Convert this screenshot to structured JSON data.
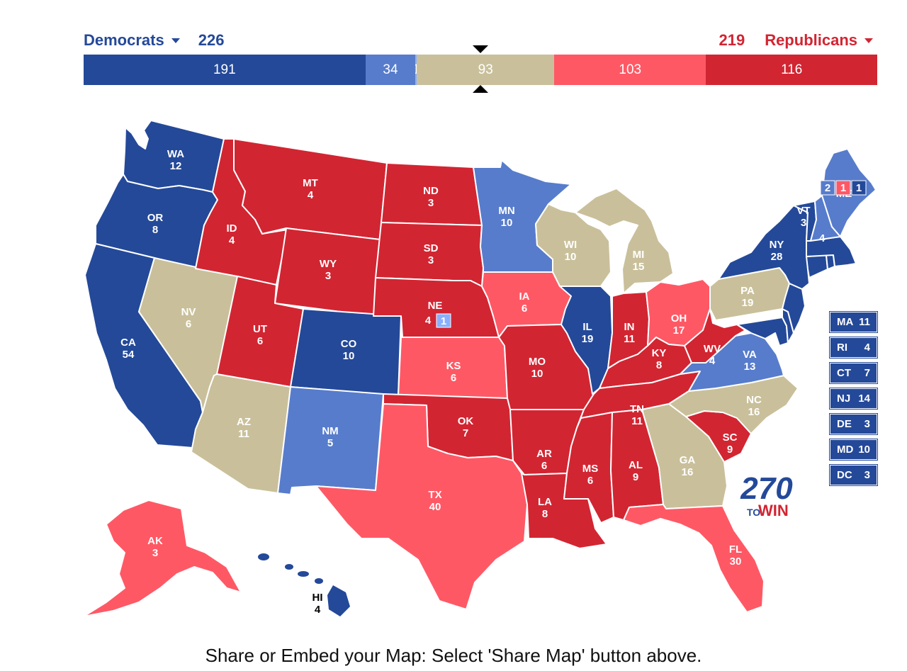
{
  "header": {
    "dem_label": "Democrats",
    "dem_total": "226",
    "rep_label": "Republicans",
    "rep_total": "219"
  },
  "bar_segments": [
    {
      "label": "191",
      "value": 191,
      "color": "#244999"
    },
    {
      "label": "34",
      "value": 34,
      "color": "#577CCC"
    },
    {
      "label": "1",
      "value": 1,
      "color": "#8AAFFF"
    },
    {
      "label": "93",
      "value": 93,
      "color": "#C9C09B"
    },
    {
      "label": "103",
      "value": 103,
      "color": "#FF5865"
    },
    {
      "label": "116",
      "value": 116,
      "color": "#D22532"
    }
  ],
  "states": {
    "WA": {
      "name": "WA",
      "ev": "12"
    },
    "OR": {
      "name": "OR",
      "ev": "8"
    },
    "CA": {
      "name": "CA",
      "ev": "54"
    },
    "NV": {
      "name": "NV",
      "ev": "6"
    },
    "ID": {
      "name": "ID",
      "ev": "4"
    },
    "MT": {
      "name": "MT",
      "ev": "4"
    },
    "WY": {
      "name": "WY",
      "ev": "3"
    },
    "UT": {
      "name": "UT",
      "ev": "6"
    },
    "AZ": {
      "name": "AZ",
      "ev": "11"
    },
    "CO": {
      "name": "CO",
      "ev": "10"
    },
    "NM": {
      "name": "NM",
      "ev": "5"
    },
    "ND": {
      "name": "ND",
      "ev": "3"
    },
    "SD": {
      "name": "SD",
      "ev": "3"
    },
    "NE": {
      "name": "NE",
      "ev": "4",
      "district": "1"
    },
    "KS": {
      "name": "KS",
      "ev": "6"
    },
    "OK": {
      "name": "OK",
      "ev": "7"
    },
    "TX": {
      "name": "TX",
      "ev": "40"
    },
    "MN": {
      "name": "MN",
      "ev": "10"
    },
    "IA": {
      "name": "IA",
      "ev": "6"
    },
    "MO": {
      "name": "MO",
      "ev": "10"
    },
    "AR": {
      "name": "AR",
      "ev": "6"
    },
    "LA": {
      "name": "LA",
      "ev": "8"
    },
    "WI": {
      "name": "WI",
      "ev": "10"
    },
    "IL": {
      "name": "IL",
      "ev": "19"
    },
    "MI": {
      "name": "MI",
      "ev": "15"
    },
    "IN": {
      "name": "IN",
      "ev": "11"
    },
    "OH": {
      "name": "OH",
      "ev": "17"
    },
    "KY": {
      "name": "KY",
      "ev": "8"
    },
    "TN": {
      "name": "TN",
      "ev": "11"
    },
    "MS": {
      "name": "MS",
      "ev": "6"
    },
    "AL": {
      "name": "AL",
      "ev": "9"
    },
    "GA": {
      "name": "GA",
      "ev": "16"
    },
    "FL": {
      "name": "FL",
      "ev": "30"
    },
    "SC": {
      "name": "SC",
      "ev": "9"
    },
    "NC": {
      "name": "NC",
      "ev": "16"
    },
    "VA": {
      "name": "VA",
      "ev": "13"
    },
    "WV": {
      "name": "WV",
      "ev": "4"
    },
    "PA": {
      "name": "PA",
      "ev": "19"
    },
    "NY": {
      "name": "NY",
      "ev": "28"
    },
    "VT": {
      "name": "VT",
      "ev": "3"
    },
    "NH": {
      "name": "",
      "ev": "4"
    },
    "ME": {
      "name": "ME",
      "d1": "2",
      "d2": "1",
      "d3": "1"
    },
    "AK": {
      "name": "AK",
      "ev": "3"
    },
    "HI": {
      "name": "HI",
      "ev": "4"
    }
  },
  "small_states": [
    {
      "name": "MA",
      "ev": "11"
    },
    {
      "name": "RI",
      "ev": "4"
    },
    {
      "name": "CT",
      "ev": "7"
    },
    {
      "name": "NJ",
      "ev": "14"
    },
    {
      "name": "DE",
      "ev": "3"
    },
    {
      "name": "MD",
      "ev": "10"
    },
    {
      "name": "DC",
      "ev": "3"
    }
  ],
  "logo": {
    "top": "270",
    "bottom_to": "TO",
    "bottom_win": "WIN"
  },
  "colors": {
    "safe_dem": "#244999",
    "likely_dem": "#577CCC",
    "lean_dem": "#8AAFFF",
    "tossup": "#C9C09B",
    "likely_rep": "#FF5865",
    "safe_rep": "#D22532"
  },
  "footer": "Share or Embed your Map: Select 'Share Map' button above."
}
